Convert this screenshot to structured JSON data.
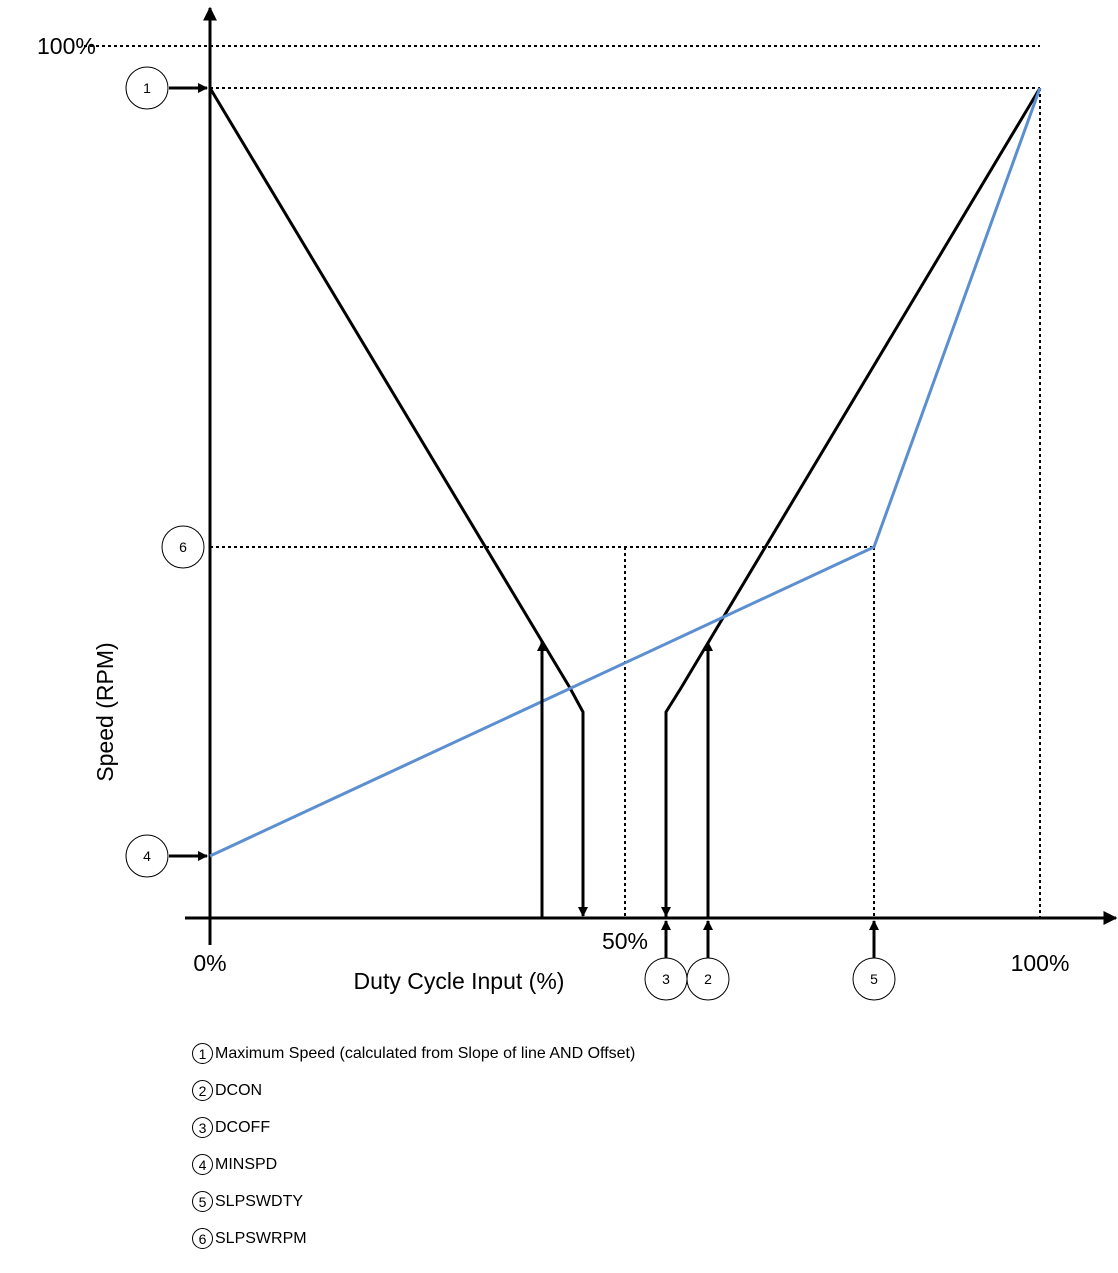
{
  "diagram": {
    "y_axis_label": "Speed (RPM)",
    "x_axis_label": "Duty Cycle Input (%)",
    "y_top_label": "100%",
    "x_tick_labels": {
      "zero": "0%",
      "half": "50%",
      "full": "100%"
    },
    "markers": [
      {
        "number": "1"
      },
      {
        "number": "2"
      },
      {
        "number": "3"
      },
      {
        "number": "4"
      },
      {
        "number": "5"
      },
      {
        "number": "6"
      }
    ],
    "colors": {
      "line": "#000000",
      "blue_curve": "#5b8fd1"
    }
  },
  "legend": [
    {
      "number": "1",
      "text": "Maximum Speed (calculated from Slope of line AND Offset)"
    },
    {
      "number": "2",
      "text": "DCON"
    },
    {
      "number": "3",
      "text": "DCOFF"
    },
    {
      "number": "4",
      "text": "MINSPD"
    },
    {
      "number": "5",
      "text": "SLPSWDTY"
    },
    {
      "number": "6",
      "text": "SLPSWRPM"
    }
  ]
}
